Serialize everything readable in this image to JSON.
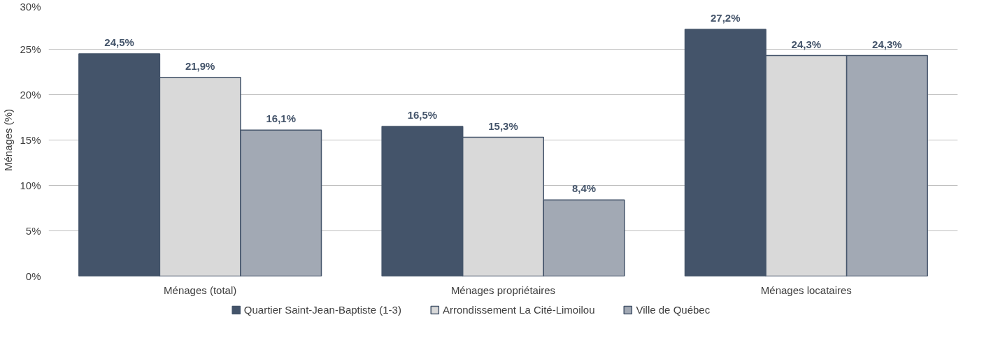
{
  "chart_data": {
    "type": "bar",
    "ylabel": "Ménages (%)",
    "categories": [
      "Ménages (total)",
      "Ménages propriétaires",
      "Ménages locataires"
    ],
    "series": [
      {
        "name": "Quartier Saint-Jean-Baptiste (1-3)",
        "color": "#44546a",
        "values": [
          24.5,
          16.5,
          27.2
        ],
        "value_labels": [
          "24,5%",
          "16,5%",
          "27,2%"
        ]
      },
      {
        "name": "Arrondissement La Cité-Limoilou",
        "color": "#d9d9d9",
        "values": [
          21.9,
          15.3,
          24.3
        ],
        "value_labels": [
          "21,9%",
          "15,3%",
          "24,3%"
        ]
      },
      {
        "name": "Ville de Québec",
        "color": "#a2a9b4",
        "values": [
          16.1,
          8.4,
          24.3
        ],
        "value_labels": [
          "16,1%",
          "8,4%",
          "24,3%"
        ]
      }
    ],
    "ylim": [
      0,
      30
    ],
    "yticks": [
      {
        "value": 0,
        "label": "0%"
      },
      {
        "value": 5,
        "label": "5%"
      },
      {
        "value": 10,
        "label": "10%"
      },
      {
        "value": 15,
        "label": "15%"
      },
      {
        "value": 20,
        "label": "20%"
      },
      {
        "value": 25,
        "label": "25%"
      },
      {
        "value": 30,
        "label": "30%"
      }
    ],
    "grid": "y",
    "legend": "bottom"
  }
}
